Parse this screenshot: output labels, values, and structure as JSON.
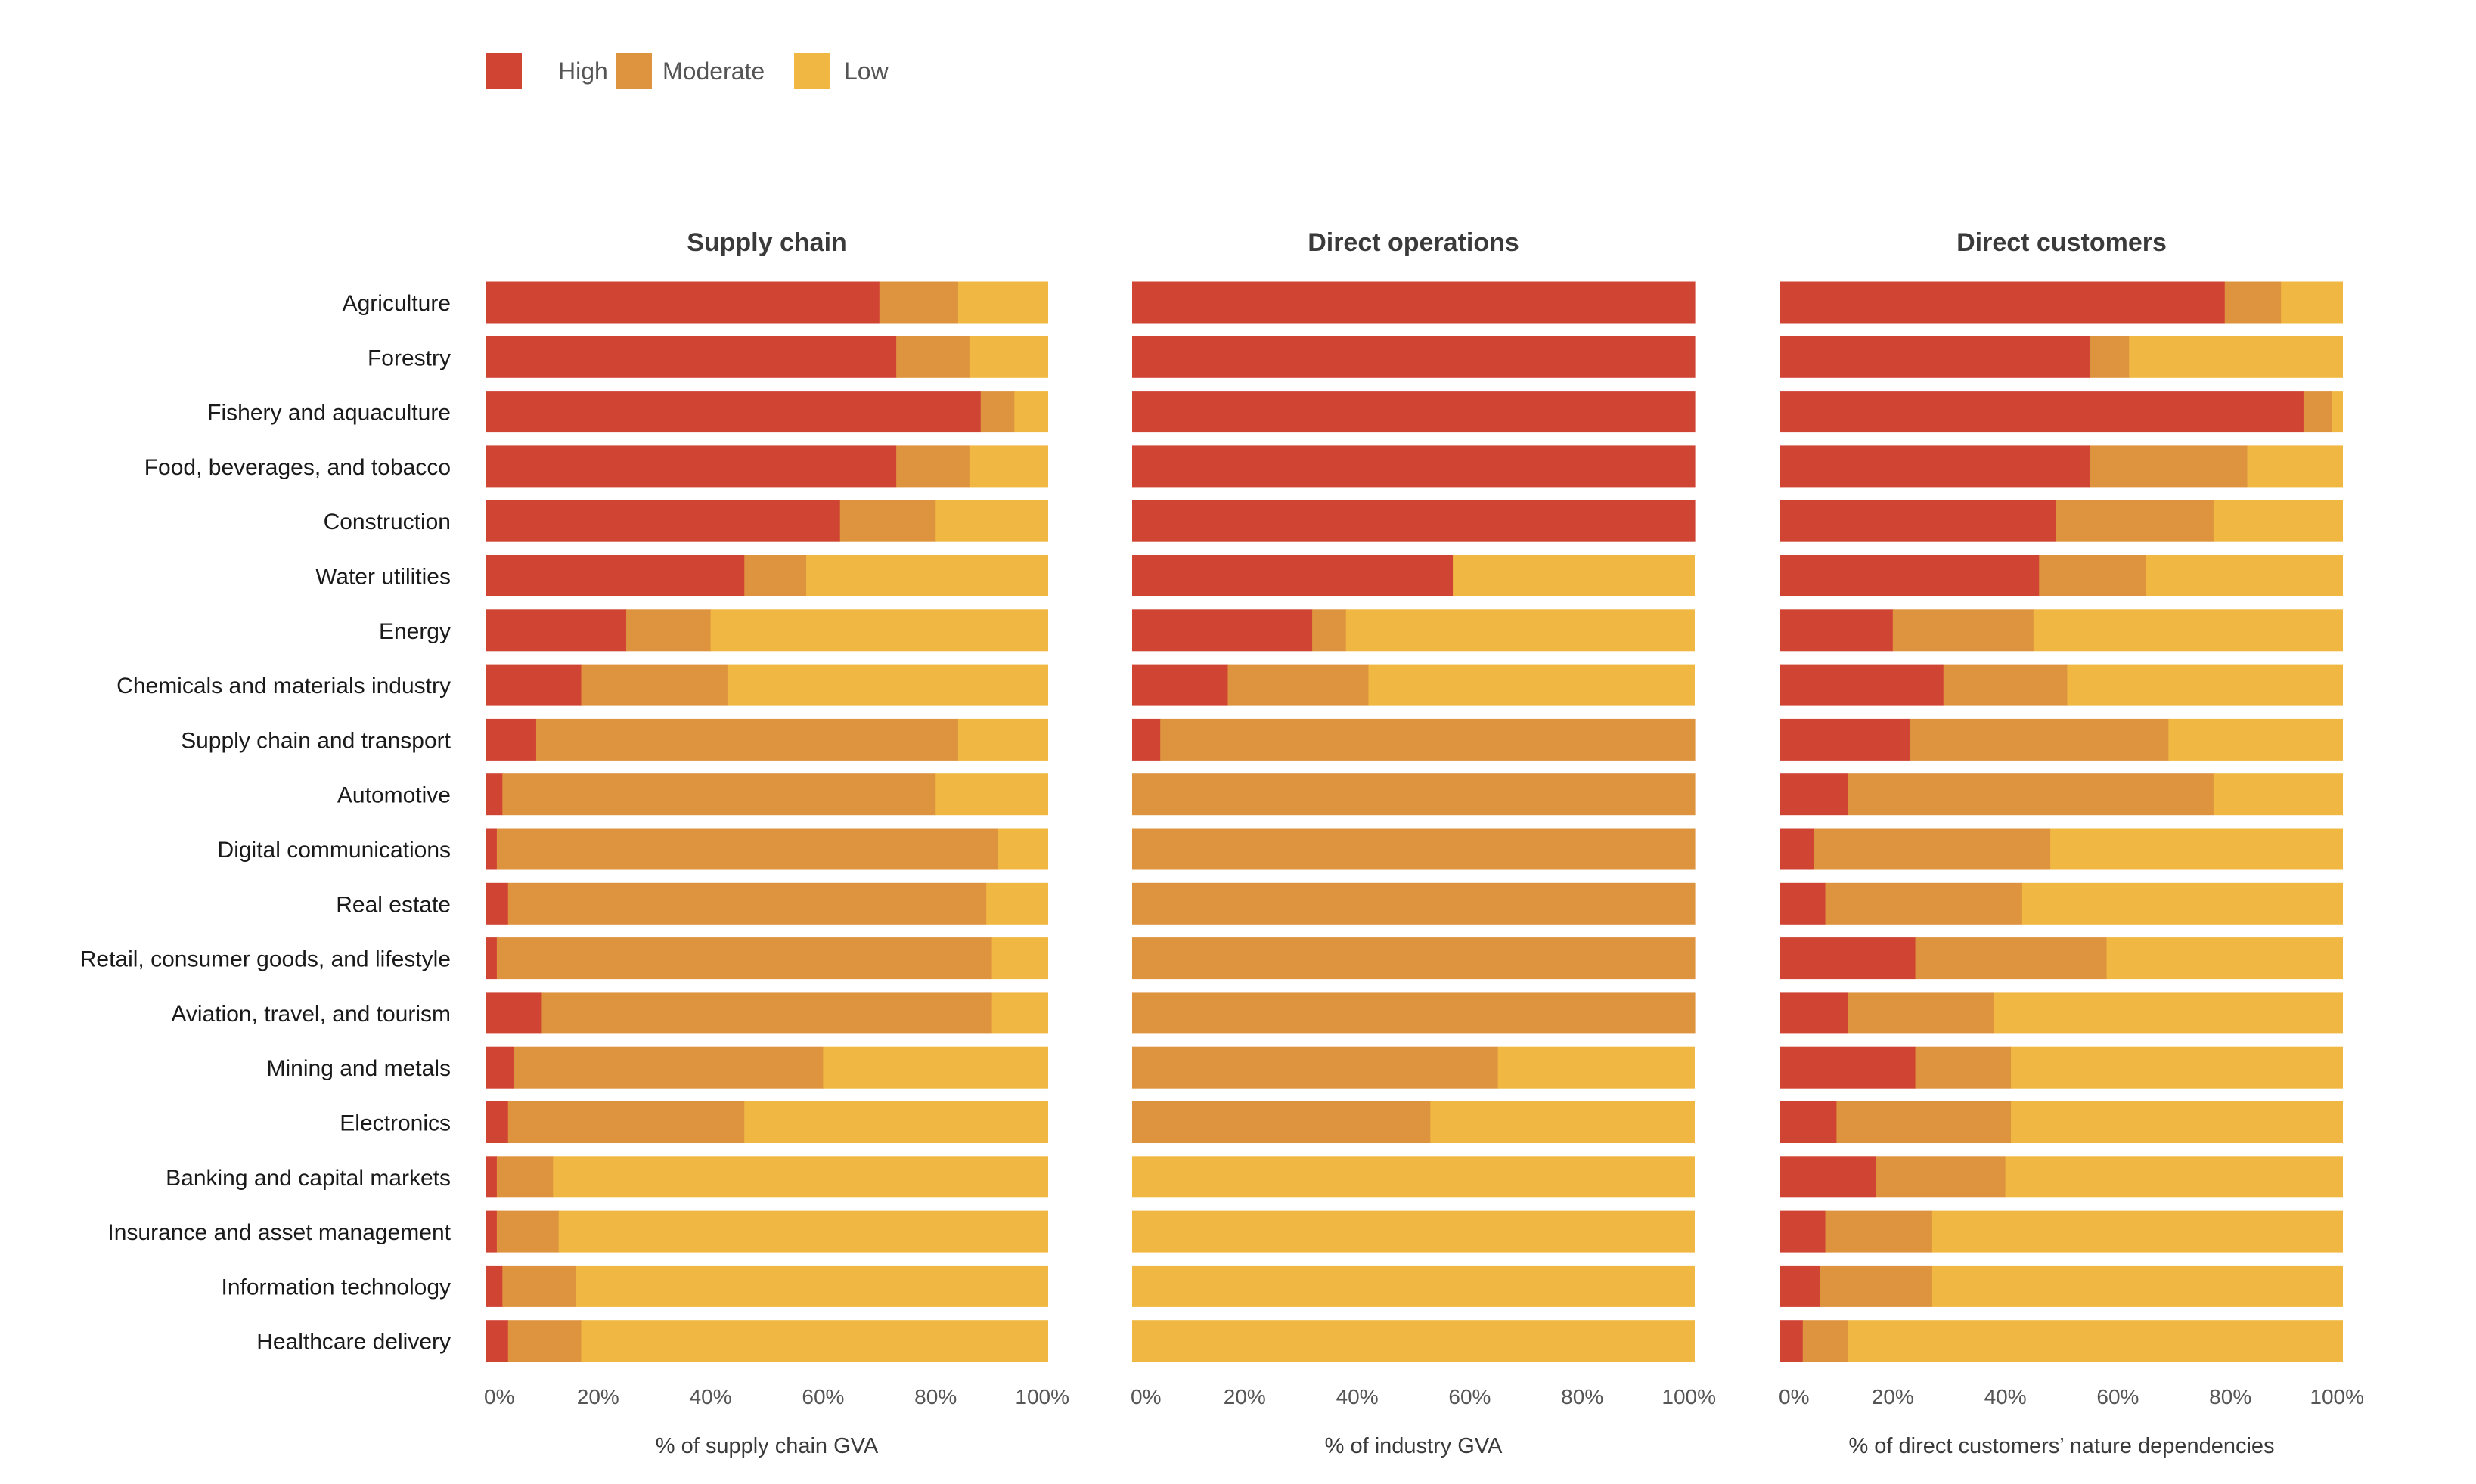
{
  "colors": {
    "high": "#D04434",
    "moderate": "#DE943F",
    "low": "#F0B843",
    "text": "#1a1a1a",
    "axis_text": "#555555",
    "title_text": "#3a3a3a"
  },
  "legend": [
    {
      "key": "high",
      "label": "High"
    },
    {
      "key": "moderate",
      "label": "Moderate"
    },
    {
      "key": "low",
      "label": "Low"
    }
  ],
  "chart_data": {
    "type": "bar",
    "orientation": "horizontal",
    "stacked": true,
    "legend_position": "top-left",
    "grid": false,
    "categories": [
      "Agriculture",
      "Forestry",
      "Fishery and aquaculture",
      "Food, beverages, and tobacco",
      "Construction",
      "Water utilities",
      "Energy",
      "Chemicals and materials industry",
      "Supply chain and transport",
      "Automotive",
      "Digital communications",
      "Real estate",
      "Retail, consumer goods, and lifestyle",
      "Aviation, travel, and tourism",
      "Mining and metals",
      "Electronics",
      "Banking and capital markets",
      "Insurance and asset management",
      "Information technology",
      "Healthcare delivery"
    ],
    "xlim": [
      0,
      100
    ],
    "xticks": [
      "0%",
      "20%",
      "40%",
      "60%",
      "80%",
      "100%"
    ],
    "panels": [
      {
        "title": "Supply chain",
        "xlabel": "% of supply chain GVA",
        "series": [
          {
            "name": "High",
            "key": "high",
            "values": [
              70,
              73,
              88,
              73,
              63,
              46,
              25,
              17,
              9,
              3,
              2,
              4,
              2,
              10,
              5,
              4,
              2,
              2,
              3,
              4
            ]
          },
          {
            "name": "Moderate",
            "key": "moderate",
            "values": [
              14,
              13,
              6,
              13,
              17,
              11,
              15,
              26,
              75,
              77,
              89,
              85,
              88,
              80,
              55,
              42,
              10,
              11,
              13,
              13
            ]
          },
          {
            "name": "Low",
            "key": "low",
            "values": [
              16,
              14,
              6,
              14,
              20,
              43,
              60,
              57,
              16,
              20,
              9,
              11,
              10,
              10,
              40,
              54,
              88,
              87,
              84,
              83
            ]
          }
        ]
      },
      {
        "title": "Direct operations",
        "xlabel": "% of industry GVA",
        "series": [
          {
            "name": "High",
            "key": "high",
            "values": [
              100,
              100,
              100,
              100,
              100,
              57,
              32,
              17,
              5,
              0,
              0,
              0,
              0,
              0,
              0,
              0,
              0,
              0,
              0,
              0
            ]
          },
          {
            "name": "Moderate",
            "key": "moderate",
            "values": [
              0,
              0,
              0,
              0,
              0,
              0,
              6,
              25,
              95,
              100,
              100,
              100,
              100,
              100,
              65,
              53,
              0,
              0,
              0,
              0
            ]
          },
          {
            "name": "Low",
            "key": "low",
            "values": [
              0,
              0,
              0,
              0,
              0,
              43,
              62,
              58,
              0,
              0,
              0,
              0,
              0,
              0,
              35,
              47,
              100,
              100,
              100,
              100
            ]
          }
        ]
      },
      {
        "title": "Direct customers",
        "xlabel": "% of direct customers’ nature dependencies",
        "series": [
          {
            "name": "High",
            "key": "high",
            "values": [
              79,
              55,
              93,
              55,
              49,
              46,
              20,
              29,
              23,
              12,
              6,
              8,
              24,
              12,
              24,
              10,
              17,
              8,
              7,
              4
            ]
          },
          {
            "name": "Moderate",
            "key": "moderate",
            "values": [
              10,
              7,
              5,
              28,
              28,
              19,
              25,
              22,
              46,
              65,
              42,
              35,
              34,
              26,
              17,
              31,
              23,
              19,
              20,
              8
            ]
          },
          {
            "name": "Low",
            "key": "low",
            "values": [
              11,
              38,
              2,
              17,
              23,
              35,
              55,
              49,
              31,
              23,
              52,
              57,
              42,
              62,
              59,
              59,
              60,
              73,
              73,
              88
            ]
          }
        ]
      }
    ]
  }
}
